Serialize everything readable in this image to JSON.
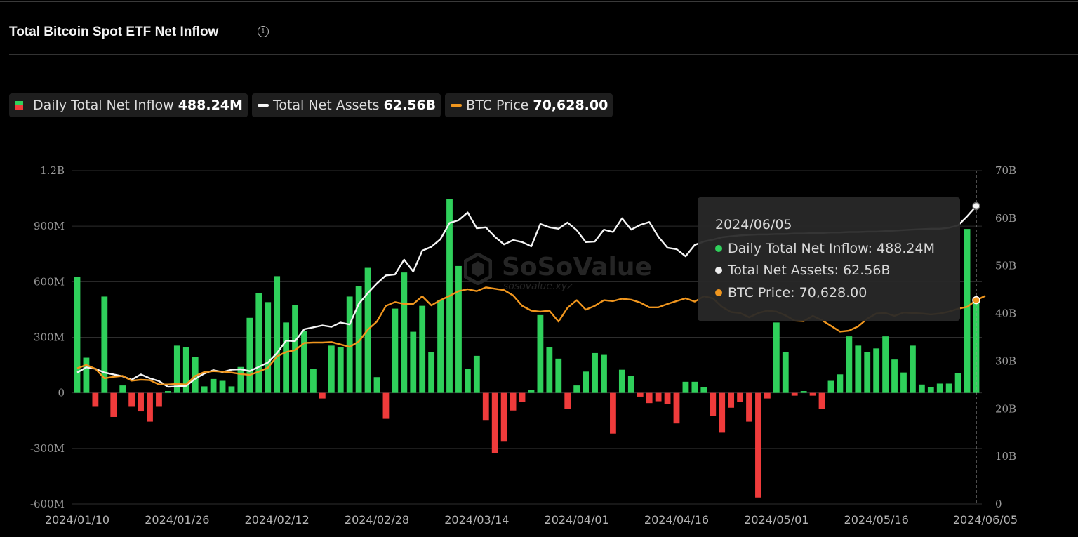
{
  "header": {
    "title": "Total Bitcoin Spot ETF Net Inflow",
    "info_icon": "info-circle-icon"
  },
  "legend": [
    {
      "name": "Daily Total Net Inflow",
      "value": "488.24M",
      "icon": "bar-swatch"
    },
    {
      "name": "Total Net Assets",
      "value": "62.56B",
      "icon": "line-swatch"
    },
    {
      "name": "BTC Price",
      "value": "70,628.00",
      "icon": "line-swatch"
    }
  ],
  "colors": {
    "inflow_positive": "#2fd05b",
    "inflow_negative": "#ef3b3b",
    "net_assets": "#f5f5f5",
    "btc_price": "#f0961e",
    "grid": "#2e2e2e",
    "background": "#000000"
  },
  "watermark": {
    "main": "SoSoValue",
    "sub": "sosovalue.xyz"
  },
  "tooltip": {
    "date": "2024/06/05",
    "rows": [
      {
        "label": "Daily Total Net Inflow:",
        "value": "488.24M",
        "color": "#2fd05b"
      },
      {
        "label": "Total Net Assets:",
        "value": "62.56B",
        "color": "#eeeeee"
      },
      {
        "label": "BTC Price:",
        "value": "70,628.00",
        "color": "#f0961e"
      }
    ]
  },
  "chart_data": {
    "type": "bar",
    "title": "Total Bitcoin Spot ETF Net Inflow",
    "grid": true,
    "legend_position": "top-left",
    "y_left": {
      "ticks": [
        "1.2B",
        "900M",
        "600M",
        "300M",
        "0",
        "-300M",
        "-600M"
      ],
      "tick_values": [
        1200,
        900,
        600,
        300,
        0,
        -300,
        -600
      ],
      "unit": "M",
      "range": [
        -600,
        1200
      ]
    },
    "y_right": {
      "ticks": [
        "70B",
        "60B",
        "50B",
        "40B",
        "30B",
        "20B",
        "10B",
        "0"
      ],
      "tick_values": [
        70,
        60,
        50,
        40,
        30,
        20,
        10,
        0
      ],
      "unit": "B",
      "range": [
        0,
        70
      ]
    },
    "x": {
      "ticks": [
        "2024/01/10",
        "2024/01/26",
        "2024/02/12",
        "2024/02/28",
        "2024/03/14",
        "2024/04/01",
        "2024/04/16",
        "2024/05/01",
        "2024/05/16",
        "2024/06/05"
      ],
      "tick_positions": [
        0,
        11,
        22,
        33,
        44,
        55,
        66,
        77,
        88,
        99
      ]
    },
    "series": [
      {
        "name": "Daily Total Net Inflow",
        "kind": "bar",
        "axis": "left",
        "values": [
          625,
          190,
          -75,
          520,
          -130,
          40,
          -75,
          -100,
          -155,
          -75,
          10,
          255,
          245,
          195,
          35,
          75,
          65,
          35,
          140,
          405,
          540,
          490,
          630,
          380,
          475,
          335,
          130,
          -30,
          255,
          245,
          520,
          575,
          675,
          85,
          -140,
          455,
          650,
          330,
          470,
          220,
          500,
          1045,
          685,
          130,
          200,
          -150,
          -325,
          -260,
          -95,
          -50,
          15,
          420,
          245,
          185,
          -85,
          40,
          115,
          215,
          205,
          -220,
          125,
          90,
          -20,
          -55,
          -45,
          -60,
          -165,
          60,
          60,
          30,
          -125,
          -215,
          -80,
          -50,
          -155,
          -565,
          -30,
          380,
          220,
          -15,
          10,
          -15,
          -85,
          65,
          100,
          305,
          255,
          220,
          240,
          305,
          180,
          110,
          255,
          45,
          30,
          50,
          50,
          105,
          885,
          488.24
        ]
      },
      {
        "name": "Total Net Assets",
        "kind": "line",
        "axis": "right",
        "values": [
          27.6,
          28.7,
          28.4,
          27.6,
          27.2,
          26.8,
          26.1,
          27.2,
          26.4,
          25.8,
          24.6,
          24.7,
          24.8,
          26.3,
          27.4,
          28.1,
          27.7,
          28.2,
          28.3,
          27.9,
          28.8,
          29.7,
          31.7,
          34.3,
          34.2,
          36.7,
          37.1,
          37.5,
          37.2,
          38.1,
          37.7,
          42.0,
          44.3,
          46.3,
          48.0,
          48.2,
          51.3,
          48.8,
          53.2,
          54.0,
          55.6,
          59.0,
          59.6,
          61.2,
          57.9,
          58.1,
          56.1,
          54.5,
          55.4,
          55.0,
          54.1,
          58.8,
          58.1,
          57.8,
          59.1,
          57.5,
          55.0,
          55.1,
          57.6,
          57.1,
          60.0,
          57.6,
          58.6,
          59.2,
          56.1,
          53.8,
          53.5,
          52.0,
          54.4,
          55.1,
          55.5,
          56.0,
          56.2,
          56.4,
          56.5,
          56.6,
          56.6,
          56.7,
          56.7,
          56.8,
          56.8,
          56.9,
          56.9,
          57.0,
          57.0,
          57.1,
          57.1,
          57.2,
          57.2,
          57.3,
          57.4,
          57.5,
          57.6,
          57.7,
          57.8,
          57.8,
          58.0,
          58.5,
          60.4,
          62.56
        ]
      },
      {
        "name": "BTC Price",
        "kind": "line",
        "axis": "right",
        "values": [
          28.5,
          29.2,
          28.4,
          26.4,
          26.7,
          26.9,
          25.9,
          26.1,
          26.0,
          25.1,
          25.1,
          25.2,
          25.1,
          26.9,
          27.7,
          27.9,
          27.8,
          27.6,
          27.3,
          27.1,
          27.8,
          28.6,
          31.0,
          31.9,
          32.3,
          33.8,
          33.9,
          33.9,
          34.0,
          33.5,
          33.0,
          34.1,
          36.6,
          38.3,
          41.6,
          42.4,
          42.0,
          42.0,
          43.6,
          41.7,
          42.8,
          43.7,
          44.7,
          45.1,
          44.7,
          45.5,
          45.2,
          44.9,
          43.8,
          41.6,
          40.6,
          40.4,
          40.6,
          38.3,
          41.2,
          42.8,
          40.8,
          41.6,
          42.8,
          42.6,
          43.1,
          42.9,
          42.3,
          41.3,
          41.3,
          42.0,
          42.6,
          43.2,
          42.5,
          43.6,
          43.2,
          41.4,
          40.3,
          40.1,
          39.2,
          40.1,
          40.6,
          40.4,
          39.6,
          38.5,
          38.4,
          39.5,
          38.6,
          37.4,
          36.2,
          36.4,
          37.3,
          38.9,
          40.0,
          40.1,
          39.5,
          40.2,
          40.1,
          40.0,
          39.8,
          40.0,
          40.4,
          41.0,
          41.4,
          42.8,
          43.7
        ]
      }
    ]
  }
}
